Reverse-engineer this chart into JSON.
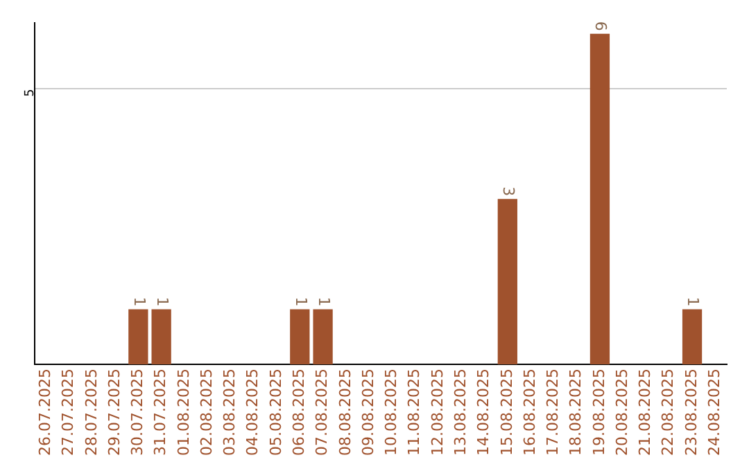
{
  "chart_data": {
    "type": "bar",
    "categories": [
      "26.07.2025",
      "27.07.2025",
      "28.07.2025",
      "29.07.2025",
      "30.07.2025",
      "31.07.2025",
      "01.08.2025",
      "02.08.2025",
      "03.08.2025",
      "04.08.2025",
      "05.08.2025",
      "06.08.2025",
      "07.08.2025",
      "08.08.2025",
      "09.08.2025",
      "10.08.2025",
      "11.08.2025",
      "12.08.2025",
      "13.08.2025",
      "14.08.2025",
      "15.08.2025",
      "16.08.2025",
      "17.08.2025",
      "18.08.2025",
      "19.08.2025",
      "20.08.2025",
      "21.08.2025",
      "22.08.2025",
      "23.08.2025",
      "24.08.2025"
    ],
    "values": [
      0,
      0,
      0,
      0,
      1,
      1,
      0,
      0,
      0,
      0,
      0,
      1,
      1,
      0,
      0,
      0,
      0,
      0,
      0,
      0,
      3,
      0,
      0,
      0,
      6,
      0,
      0,
      0,
      1,
      0
    ],
    "value_labels": [
      null,
      null,
      null,
      null,
      "1",
      "1",
      null,
      null,
      null,
      null,
      null,
      "1",
      "1",
      null,
      null,
      null,
      null,
      null,
      null,
      null,
      "3",
      null,
      null,
      null,
      "6",
      null,
      null,
      null,
      "1",
      null
    ],
    "color": "#a0522d",
    "ylim": [
      0,
      6.2
    ],
    "yticks": [
      5
    ],
    "grid": "y",
    "legend": false
  }
}
